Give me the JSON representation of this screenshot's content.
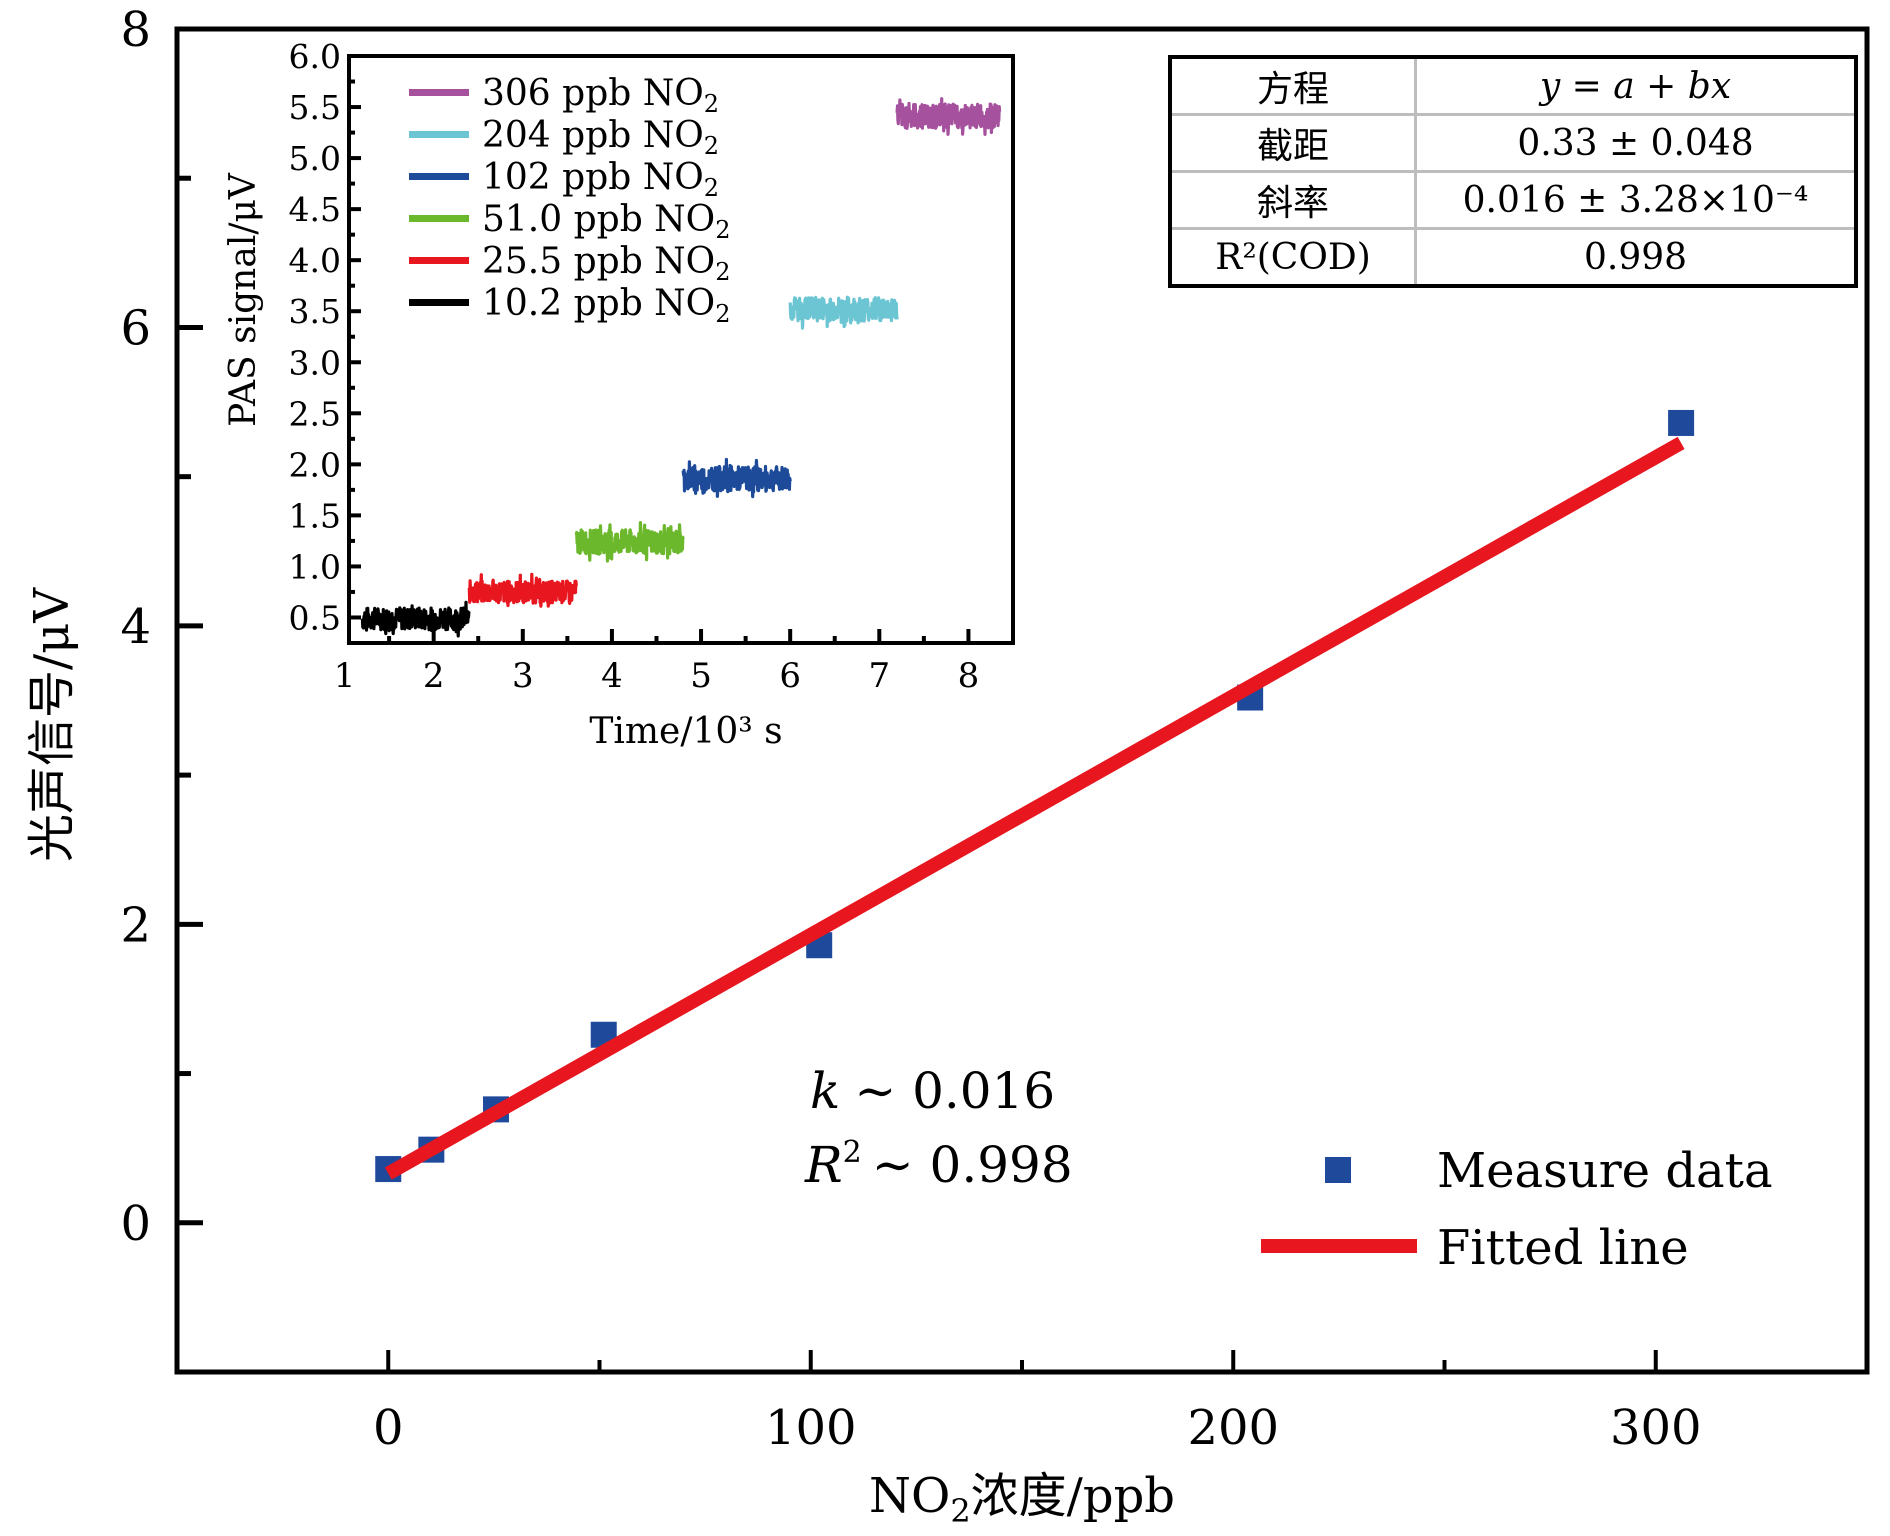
{
  "chart_data": [
    {
      "id": "main",
      "type": "scatter",
      "title": "",
      "xlabel": "NO₂浓度/ppb",
      "ylabel": "光声信号/μV",
      "xlim": [
        -50,
        350
      ],
      "ylim": [
        -1,
        8
      ],
      "xticks": [
        0,
        100,
        200,
        300
      ],
      "xtick_labels": [
        "0",
        "100",
        "200",
        "300"
      ],
      "xminor": [
        50,
        150,
        250
      ],
      "yticks": [
        0,
        2,
        4,
        6,
        8
      ],
      "ytick_labels": [
        "0",
        "2",
        "4",
        "6",
        "8"
      ],
      "yminor": [
        -1,
        1,
        3,
        5,
        7
      ],
      "grid": false,
      "legend_position": "bottom-right",
      "series": [
        {
          "name": "Measure data",
          "kind": "scatter",
          "marker": "square",
          "color": "#1f4a9b",
          "x": [
            0,
            10.2,
            25.5,
            51.0,
            102,
            204,
            306
          ],
          "y": [
            0.36,
            0.49,
            0.76,
            1.26,
            1.86,
            3.52,
            5.36
          ]
        },
        {
          "name": "Fitted line",
          "kind": "line",
          "color": "#e8161e",
          "intercept": 0.33,
          "slope": 0.016,
          "x_range": [
            0,
            306
          ]
        }
      ],
      "annotations": {
        "k_text": "k ∼ 0.016",
        "k_symbol": "k",
        "k_value": "∼ 0.016",
        "r2_symbol": "R",
        "r2_sup": "2",
        "r2_value": "∼ 0.998"
      },
      "fit_table": {
        "rows": [
          {
            "label": "方程",
            "value": "y = a + bx"
          },
          {
            "label": "截距",
            "value": "0.33 ± 0.048"
          },
          {
            "label": "斜率",
            "value": "0.016 ± 3.28×10⁻⁴"
          },
          {
            "label": "R²(COD)",
            "value": "0.998"
          }
        ]
      }
    },
    {
      "id": "inset",
      "type": "line",
      "title": "",
      "xlabel": "Time/10³ s",
      "ylabel": "PAS signal/μV",
      "xlim": [
        1.05,
        8.5
      ],
      "ylim": [
        0.25,
        6.0
      ],
      "xticks": [
        1,
        2,
        3,
        4,
        5,
        6,
        7,
        8
      ],
      "xtick_labels": [
        "1",
        "2",
        "3",
        "4",
        "5",
        "6",
        "7",
        "8"
      ],
      "yticks": [
        0.5,
        1.0,
        1.5,
        2.0,
        2.5,
        3.0,
        3.5,
        4.0,
        4.5,
        5.0,
        5.5,
        6.0
      ],
      "ytick_labels": [
        "0.5",
        "1.0",
        "1.5",
        "2.0",
        "2.5",
        "3.0",
        "3.5",
        "4.0",
        "4.5",
        "5.0",
        "5.5",
        "6.0"
      ],
      "grid": false,
      "legend_position": "top-left",
      "series": [
        {
          "name": "306 ppb NO₂",
          "label_num": "306 ppb NO",
          "color": "#a5519d",
          "t_start": 7.2,
          "t_end": 8.35,
          "mean": 5.41,
          "noise": 0.12
        },
        {
          "name": "204 ppb NO₂",
          "label_num": "204 ppb NO",
          "color": "#6cc5d3",
          "t_start": 6.0,
          "t_end": 7.2,
          "mean": 3.52,
          "noise": 0.12
        },
        {
          "name": "102 ppb NO₂",
          "label_num": "102 ppb NO",
          "color": "#1e4a9a",
          "t_start": 4.8,
          "t_end": 6.0,
          "mean": 1.86,
          "noise": 0.12
        },
        {
          "name": "51.0 ppb NO₂",
          "label_num": "51.0 ppb NO",
          "color": "#6cb82c",
          "t_start": 3.6,
          "t_end": 4.8,
          "mean": 1.24,
          "noise": 0.12
        },
        {
          "name": "25.5 ppb NO₂",
          "label_num": "25.5 ppb NO",
          "color": "#e8161e",
          "t_start": 2.4,
          "t_end": 3.6,
          "mean": 0.75,
          "noise": 0.11
        },
        {
          "name": "10.2 ppb NO₂",
          "label_num": "10.2 ppb NO",
          "color": "#000000",
          "t_start": 1.2,
          "t_end": 2.4,
          "mean": 0.49,
          "noise": 0.11
        }
      ],
      "legend_sub": "2"
    }
  ]
}
